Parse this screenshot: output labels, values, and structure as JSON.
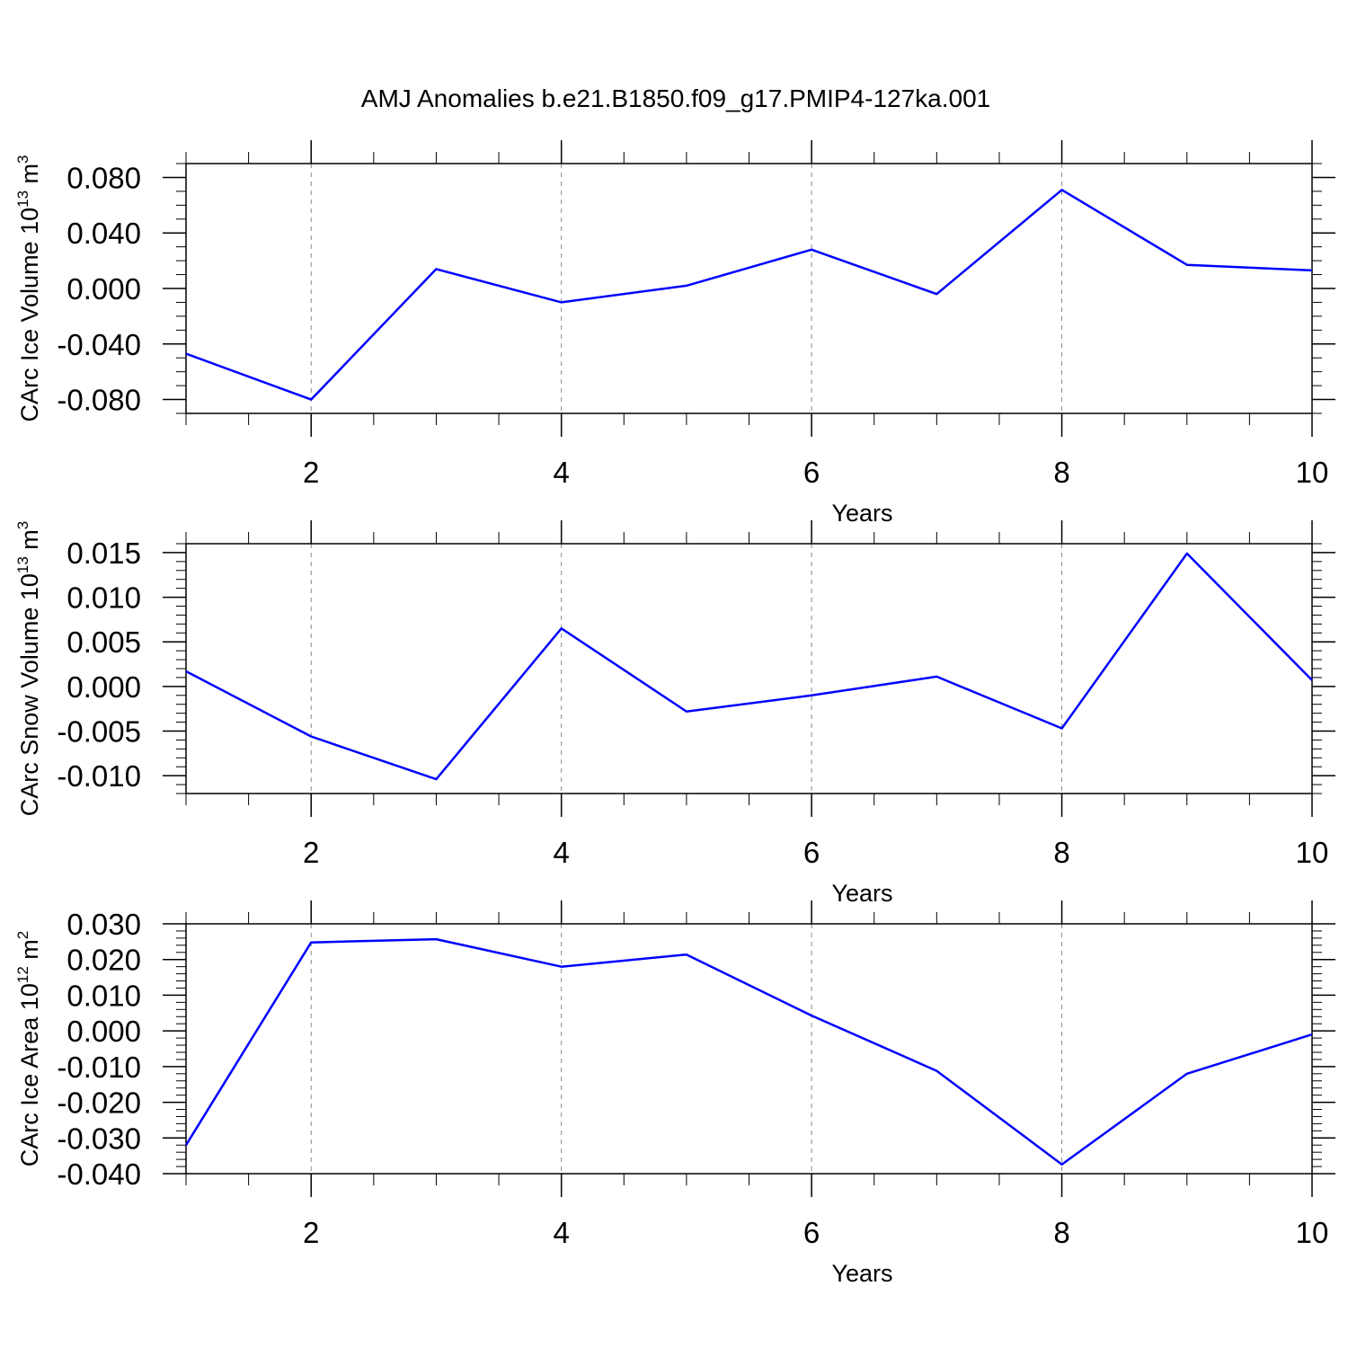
{
  "title": "AMJ Anomalies b.e21.B1850.f09_g17.PMIP4-127ka.001",
  "colors": {
    "line": "#0000ff",
    "axis": "#000000",
    "grid": "#888888"
  },
  "chart_data": [
    {
      "type": "line",
      "xlabel": "Years",
      "ylabel": {
        "text": "CArc Ice Volume 10",
        "sup": "13",
        "unit": " m",
        "unit_sup": "3"
      },
      "xlim": [
        1,
        10
      ],
      "ylim": [
        -0.09,
        0.09
      ],
      "x_ticks": [
        2,
        4,
        6,
        8,
        10
      ],
      "x_tick_labels": [
        "2",
        "4",
        "6",
        "8",
        "10"
      ],
      "y_ticks": [
        -0.08,
        -0.04,
        0.0,
        0.04,
        0.08
      ],
      "y_tick_labels": [
        "-0.080",
        "-0.040",
        "0.000",
        "0.040",
        "0.080"
      ],
      "y_minor_step": 0.01,
      "grid": "vertical-dashed",
      "series": [
        {
          "x": [
            1,
            2,
            3,
            4,
            5,
            6,
            7,
            8,
            9,
            10
          ],
          "values": [
            -0.047,
            -0.08,
            0.014,
            -0.01,
            0.002,
            0.028,
            -0.004,
            0.071,
            0.017,
            0.013
          ]
        }
      ]
    },
    {
      "type": "line",
      "xlabel": "Years",
      "ylabel": {
        "text": "CArc Snow Volume 10",
        "sup": "13",
        "unit": " m",
        "unit_sup": "3"
      },
      "xlim": [
        1,
        10
      ],
      "ylim": [
        -0.012,
        0.016
      ],
      "x_ticks": [
        2,
        4,
        6,
        8,
        10
      ],
      "x_tick_labels": [
        "2",
        "4",
        "6",
        "8",
        "10"
      ],
      "y_ticks": [
        -0.01,
        -0.005,
        0.0,
        0.005,
        0.01,
        0.015
      ],
      "y_tick_labels": [
        "-0.010",
        "-0.005",
        "0.000",
        "0.005",
        "0.010",
        "0.015"
      ],
      "y_minor_step": 0.001,
      "grid": "vertical-dashed",
      "series": [
        {
          "x": [
            1,
            2,
            3,
            4,
            5,
            6,
            7,
            8,
            9,
            10
          ],
          "values": [
            0.0017,
            -0.0056,
            -0.0104,
            0.0065,
            -0.0028,
            -0.001,
            0.0011,
            -0.0047,
            0.0149,
            0.0007
          ]
        }
      ]
    },
    {
      "type": "line",
      "xlabel": "Years",
      "ylabel": {
        "text": "CArc Ice Area 10",
        "sup": "12",
        "unit": " m",
        "unit_sup": "2"
      },
      "xlim": [
        1,
        10
      ],
      "ylim": [
        -0.04,
        0.03
      ],
      "x_ticks": [
        2,
        4,
        6,
        8,
        10
      ],
      "x_tick_labels": [
        "2",
        "4",
        "6",
        "8",
        "10"
      ],
      "y_ticks": [
        -0.04,
        -0.03,
        -0.02,
        -0.01,
        0.0,
        0.01,
        0.02,
        0.03
      ],
      "y_tick_labels": [
        "-0.040",
        "-0.030",
        "-0.020",
        "-0.010",
        "0.000",
        "0.010",
        "0.020",
        "0.030"
      ],
      "y_minor_step": 0.002,
      "grid": "vertical-dashed",
      "series": [
        {
          "x": [
            1,
            2,
            3,
            4,
            5,
            6,
            7,
            8,
            9,
            10
          ],
          "values": [
            -0.032,
            0.0248,
            0.0257,
            0.018,
            0.0214,
            0.0043,
            -0.0112,
            -0.0374,
            -0.012,
            -0.001
          ]
        }
      ]
    }
  ]
}
